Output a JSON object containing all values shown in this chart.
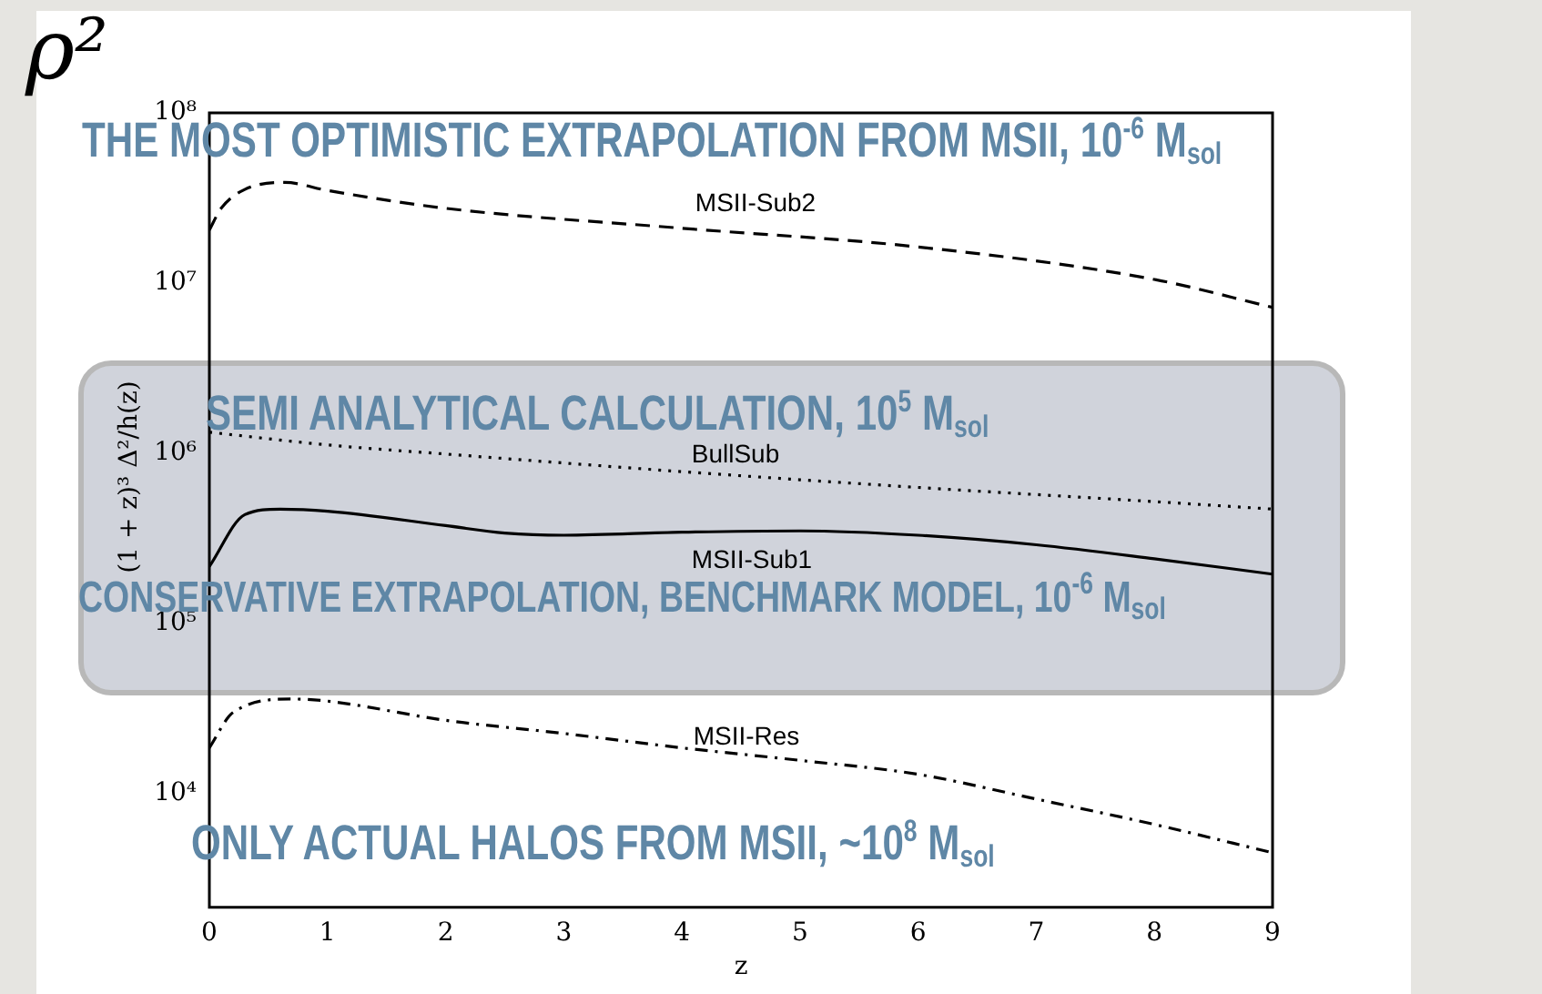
{
  "chart_data": {
    "type": "line",
    "title": "ρ²",
    "xlabel": "z",
    "ylabel": "(1 + z)³ Δ²/h(z)",
    "log": "y",
    "xlim": [
      0,
      9
    ],
    "xticks": [
      0,
      1,
      2,
      3,
      4,
      5,
      6,
      7,
      8,
      9
    ],
    "ylim": [
      2150,
      100000000
    ],
    "yticks": [
      {
        "value": 10000,
        "label": "10⁴"
      },
      {
        "value": 100000,
        "label": "10⁵"
      },
      {
        "value": 1000000,
        "label": "10⁶"
      },
      {
        "value": 10000000,
        "label": "10⁷"
      },
      {
        "value": 100000000,
        "label": "10⁸"
      }
    ],
    "series": [
      {
        "color": "#000000",
        "line_style": "dashed",
        "x": [
          0,
          0.1,
          0.3,
          0.64,
          1,
          2,
          4,
          6,
          8,
          9
        ],
        "values": [
          20500000,
          27500000,
          35500000,
          39000000,
          35000000,
          27500000,
          21000000,
          16300000,
          10500000,
          7200000
        ]
      },
      {
        "color": "#000000",
        "line_style": "dotted",
        "x": [
          0,
          1,
          2,
          4,
          6,
          8,
          9
        ],
        "values": [
          1330000,
          1120000,
          990000,
          780000,
          630000,
          520000,
          470000
        ]
      },
      {
        "color": "#000000",
        "line_style": "solid",
        "x": [
          0,
          0.3,
          0.6,
          1,
          2,
          2.5,
          3,
          4,
          5,
          6,
          7,
          8,
          9
        ],
        "values": [
          216000,
          436000,
          470000,
          457000,
          376000,
          340000,
          330000,
          344000,
          350000,
          330000,
          290000,
          240000,
          195000
        ]
      },
      {
        "color": "#000000",
        "line_style": "dashdot",
        "x": [
          0,
          0.2,
          0.7,
          1,
          2,
          3,
          4,
          5,
          6,
          7,
          8,
          9
        ],
        "values": [
          18600,
          30000,
          36000,
          35000,
          27000,
          22600,
          18600,
          15700,
          13000,
          9300,
          6600,
          4500
        ]
      }
    ],
    "annotations": [
      "MSII-Sub2",
      "BullSub",
      "MSII-Sub1",
      "MSII-Res",
      "THE MOST OPTIMISTIC EXTRAPOLATION FROM MSII, 10$^{-6}$ M$_{sol}$",
      "SEMI ANALYTICAL CALCULATION,  10$^{5}$ M$_{sol}$",
      "CONSERVATIVE EXTRAPOLATION, BENCHMARK MODEL, 10$^{-6}$ M$_{sol}$",
      "ONLY ACTUAL HALOS FROM MSII, ~10$^{8}$ M$_{sol}$"
    ]
  }
}
